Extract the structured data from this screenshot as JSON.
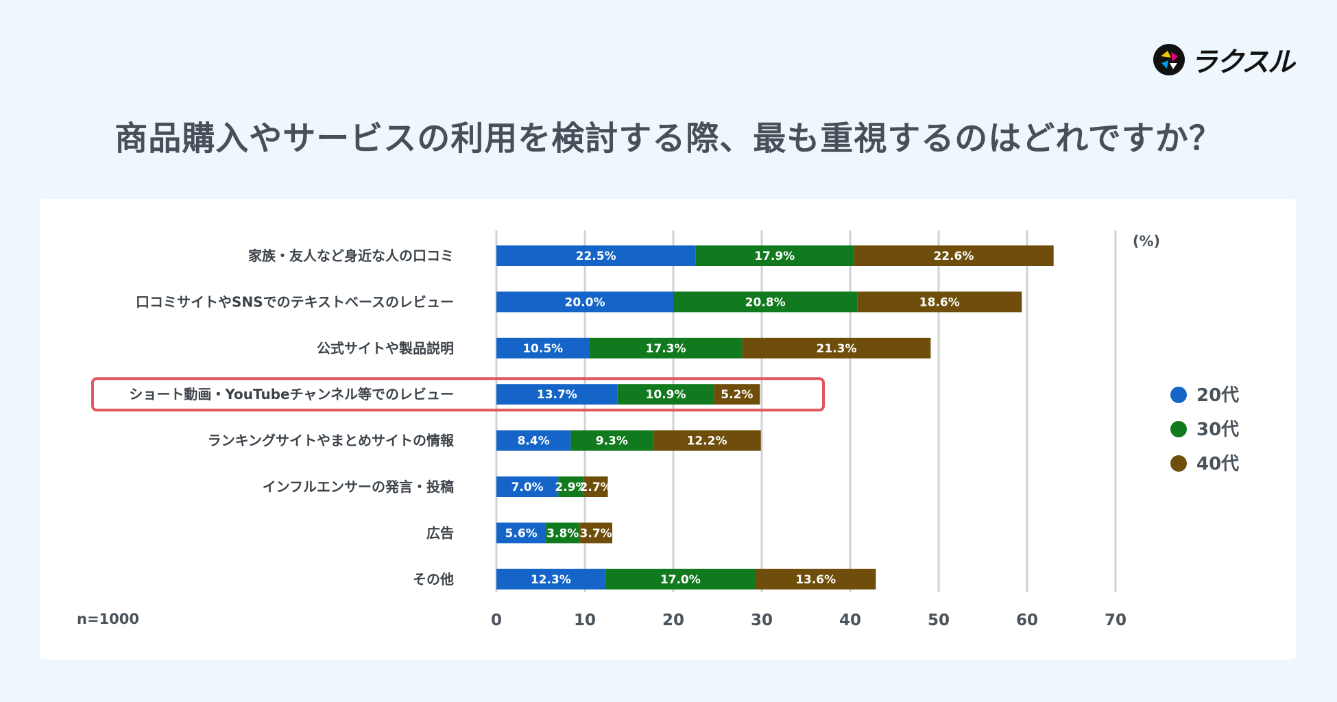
{
  "brand": {
    "name": "ラクスル"
  },
  "chart_data": {
    "type": "bar",
    "orientation": "horizontal",
    "stacked": true,
    "title": "商品購入やサービスの利用を検討する際、最も重視するのはどれですか？",
    "unit_label": "(%)",
    "sample_note": "n=1000",
    "categories": [
      "家族・友人など身近な人の口コミ",
      "口コミサイトやSNSでのテキストベースのレビュー",
      "公式サイトや製品説明",
      "ショート動画・YouTubeチャンネル等でのレビュー",
      "ランキングサイトやまとめサイトの情報",
      "インフルエンサーの発言・投稿",
      "広告",
      "その他"
    ],
    "highlighted_category": "ショート動画・YouTubeチャンネル等でのレビュー",
    "series": [
      {
        "name": "20代",
        "color": "#1565c8",
        "values": [
          22.5,
          20.0,
          10.5,
          13.7,
          8.4,
          7.0,
          5.6,
          12.3
        ],
        "labels": [
          "22.5%",
          "20.0%",
          "10.5%",
          "13.7%",
          "8.4%",
          "7.0%",
          "5.6%",
          "12.3%"
        ]
      },
      {
        "name": "30代",
        "color": "#127a1e",
        "values": [
          17.9,
          20.8,
          17.3,
          10.9,
          9.3,
          2.9,
          3.8,
          17.0
        ],
        "labels": [
          "17.9%",
          "20.8%",
          "17.3%",
          "10.9%",
          "9.3%",
          "2.9%",
          "3.8%",
          "17.0%"
        ]
      },
      {
        "name": "40代",
        "color": "#6e4e0a",
        "values": [
          22.6,
          18.6,
          21.3,
          5.2,
          12.2,
          2.7,
          3.7,
          13.6
        ],
        "labels": [
          "22.6%",
          "18.6%",
          "21.3%",
          "5.2%",
          "12.2%",
          "2.7%",
          "3.7%",
          "13.6%"
        ]
      }
    ],
    "xlim": [
      0,
      70
    ],
    "xticks": [
      "0",
      "10",
      "20",
      "30",
      "40",
      "50",
      "60",
      "70"
    ],
    "grid": true,
    "legend_position": "right",
    "highlight_color": "#e0575d"
  }
}
